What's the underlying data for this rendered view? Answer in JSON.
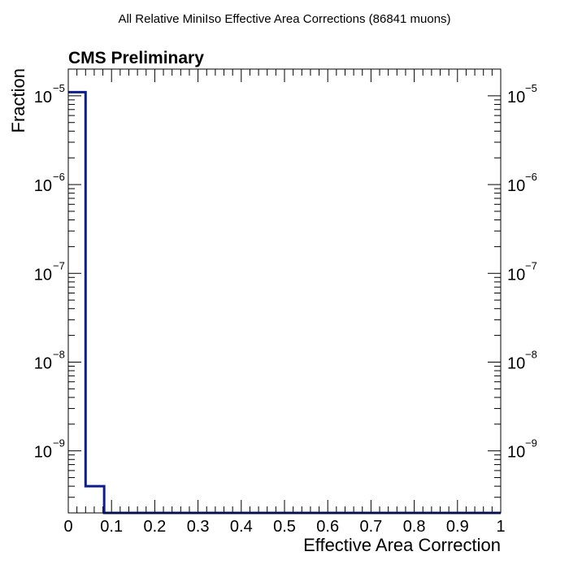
{
  "title": "All Relative MiniIso Effective Area Corrections (86841 muons)",
  "label": "CMS Preliminary",
  "chart_data": {
    "type": "histogram",
    "title": "All Relative MiniIso Effective Area Corrections (86841 muons)",
    "xlabel": "Effective Area Correction",
    "ylabel": "Fraction",
    "xlim": [
      0,
      1
    ],
    "ylim": [
      2e-10,
      2e-05
    ],
    "yscale": "log",
    "grid": false,
    "x_ticks": [
      "0",
      "0.1",
      "0.2",
      "0.3",
      "0.4",
      "0.5",
      "0.6",
      "0.7",
      "0.8",
      "0.9",
      "1"
    ],
    "y_ticks": [
      {
        "base": "10",
        "exp": "−5",
        "value": 1e-05
      },
      {
        "base": "10",
        "exp": "−6",
        "value": 1e-06
      },
      {
        "base": "10",
        "exp": "−7",
        "value": 1e-07
      },
      {
        "base": "10",
        "exp": "−8",
        "value": 1e-08
      },
      {
        "base": "10",
        "exp": "−9",
        "value": 1e-09
      }
    ],
    "bins": [
      {
        "x0": 0.0,
        "x1": 0.04,
        "value": 1.1e-05
      },
      {
        "x0": 0.04,
        "x1": 0.083,
        "value": 4e-10
      }
    ],
    "line_color": "#0b1e8c"
  }
}
